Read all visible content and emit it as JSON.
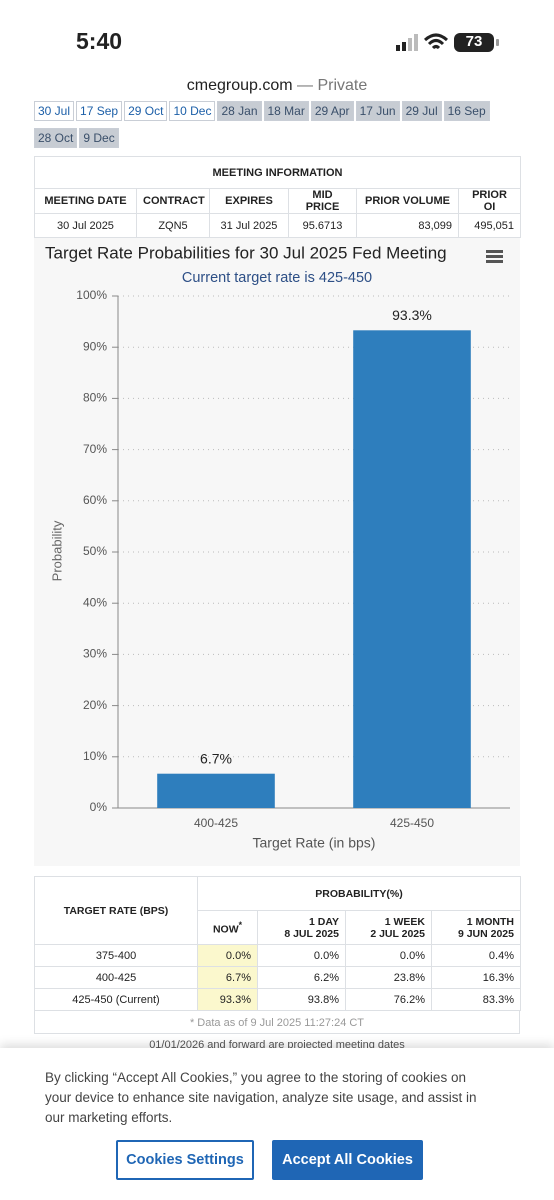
{
  "status_bar": {
    "time": "5:40",
    "battery": "73"
  },
  "browser": {
    "domain": "cmegroup.com",
    "mode": "— Private"
  },
  "meeting_tabs": [
    "30 Jul",
    "17 Sep",
    "29 Oct",
    "10 Dec",
    "28 Jan",
    "18 Mar",
    "29 Apr",
    "17 Jun",
    "29 Jul",
    "16 Sep",
    "28 Oct",
    "9 Dec"
  ],
  "meeting_info": {
    "title": "MEETING INFORMATION",
    "columns": [
      "MEETING DATE",
      "CONTRACT",
      "EXPIRES",
      "MID PRICE",
      "PRIOR VOLUME",
      "PRIOR OI"
    ],
    "row": [
      "30 Jul 2025",
      "ZQN5",
      "31 Jul 2025",
      "95.6713",
      "83,099",
      "495,051"
    ]
  },
  "chart": {
    "type": "bar",
    "title": "Target Rate Probabilities for 30 Jul 2025 Fed Meeting",
    "subtitle": "Current target rate is 425-450",
    "y_label": "Probability",
    "x_label": "Target Rate (in bps)",
    "categories": [
      "400-425",
      "425-450"
    ],
    "values": [
      6.7,
      93.3
    ],
    "value_labels": [
      "6.7%",
      "93.3%"
    ],
    "color": "#2e7ebd",
    "ylim": [
      0,
      100
    ],
    "yticks": [
      {
        "value": 0,
        "label": "0%"
      },
      {
        "value": 10,
        "label": "10%"
      },
      {
        "value": 20,
        "label": "20%"
      },
      {
        "value": 30,
        "label": "30%"
      },
      {
        "value": 40,
        "label": "40%"
      },
      {
        "value": 50,
        "label": "50%"
      },
      {
        "value": 60,
        "label": "60%"
      },
      {
        "value": 70,
        "label": "70%"
      },
      {
        "value": 80,
        "label": "80%"
      },
      {
        "value": 90,
        "label": "90%"
      },
      {
        "value": 100,
        "label": "100%"
      }
    ],
    "grid": true
  },
  "probability_table": {
    "first_header": "TARGET RATE (BPS)",
    "group_header": "PROBABILITY(%)",
    "columns": [
      {
        "title": "NOW",
        "note": "*"
      },
      {
        "title": "1 DAY",
        "date": "8 JUL 2025"
      },
      {
        "title": "1 WEEK",
        "date": "2 JUL 2025"
      },
      {
        "title": "1 MONTH",
        "date": "9 JUN 2025"
      }
    ],
    "rows": [
      [
        "375-400",
        "0.0%",
        "0.0%",
        "0.0%",
        "0.4%"
      ],
      [
        "400-425",
        "6.7%",
        "6.2%",
        "23.8%",
        "16.3%"
      ],
      [
        "425-450 (Current)",
        "93.3%",
        "93.8%",
        "76.2%",
        "83.3%"
      ]
    ],
    "footnote": "* Data as of 9 Jul 2025 11:27:24 CT",
    "cut_note": "01/01/2026 and forward are projected meeting dates"
  },
  "cookie_banner": {
    "text": "By clicking “Accept All Cookies,” you agree to the storing of cookies on your device to enhance site navigation, analyze site usage, and assist in our marketing efforts.",
    "buttons": [
      "Cookies Settings",
      "Accept All Cookies"
    ]
  }
}
